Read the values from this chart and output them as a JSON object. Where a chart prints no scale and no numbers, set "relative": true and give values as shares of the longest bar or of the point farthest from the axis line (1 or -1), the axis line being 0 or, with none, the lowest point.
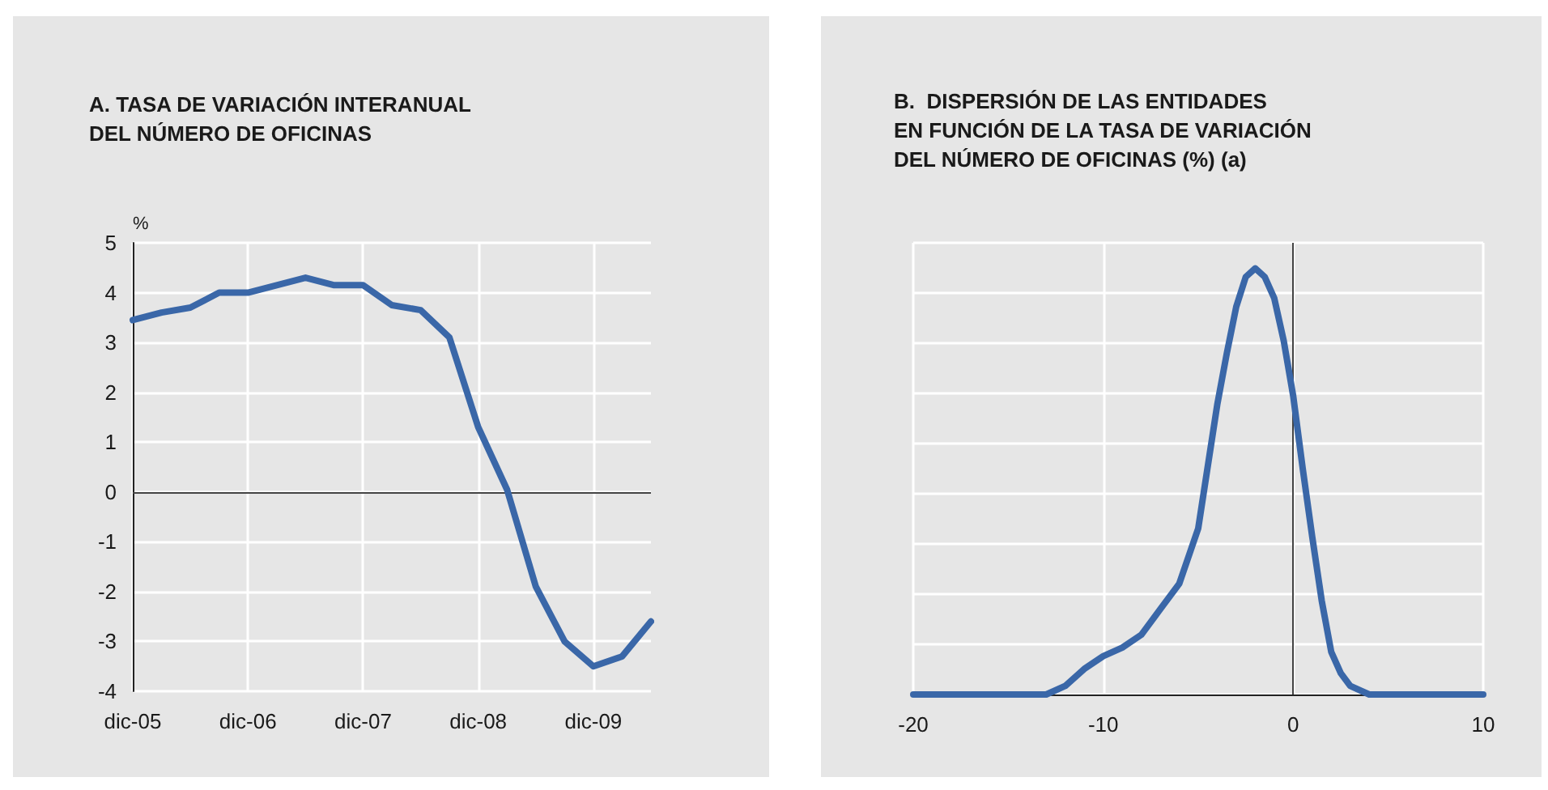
{
  "chart_data": [
    {
      "type": "line",
      "title": "A. TASA DE VARIACIÓN INTERANUAL\nDEL NÚMERO DE OFICINAS",
      "ylabel": "%",
      "categories": [
        "dic-05",
        null,
        null,
        null,
        "dic-06",
        null,
        null,
        null,
        "dic-07",
        null,
        null,
        null,
        "dic-08",
        null,
        null,
        null,
        "dic-09",
        null,
        null
      ],
      "series": [
        {
          "color": "#3a67a8",
          "values": [
            3.45,
            3.6,
            3.7,
            4.0,
            4.0,
            4.15,
            4.3,
            4.15,
            4.15,
            3.75,
            3.65,
            3.1,
            1.3,
            0.05,
            -1.9,
            -3.0,
            -3.5,
            -3.3,
            -2.6
          ]
        }
      ],
      "ylim": [
        -4,
        5
      ],
      "yticks": [
        -4,
        -3,
        -2,
        -1,
        0,
        1,
        2,
        3,
        4,
        5
      ],
      "grid": true,
      "marker": "none",
      "ref_lines": [
        {
          "axis": "y",
          "value": 0,
          "color": "#444444"
        }
      ]
    },
    {
      "type": "line",
      "title": "B.  DISPERSIÓN DE LAS ENTIDADES\nEN FUNCIÓN DE LA TASA DE VARIACIÓN\nDEL NÚMERO DE OFICINAS (%) (a)",
      "relative": true,
      "x": [
        -20,
        -13,
        -12,
        -11,
        -10,
        -9,
        -8,
        -7,
        -6,
        -5,
        -4,
        -3.5,
        -3,
        -2.5,
        -2,
        -1.5,
        -1,
        -0.5,
        0,
        0.5,
        1,
        1.5,
        2,
        2.5,
        3,
        4,
        5,
        10
      ],
      "series": [
        {
          "color": "#3a67a8",
          "values": [
            0,
            0,
            0.02,
            0.06,
            0.09,
            0.11,
            0.14,
            0.2,
            0.26,
            0.39,
            0.68,
            0.8,
            0.91,
            0.98,
            1,
            0.98,
            0.93,
            0.83,
            0.7,
            0.53,
            0.37,
            0.22,
            0.1,
            0.05,
            0.02,
            0,
            0,
            0
          ]
        }
      ],
      "xlim": [
        -20,
        10
      ],
      "xticks": [
        -20,
        -10,
        0,
        10
      ],
      "grid": true,
      "marker": "none",
      "ref_lines": [
        {
          "axis": "x",
          "value": 0,
          "color": "#444444"
        }
      ]
    }
  ]
}
